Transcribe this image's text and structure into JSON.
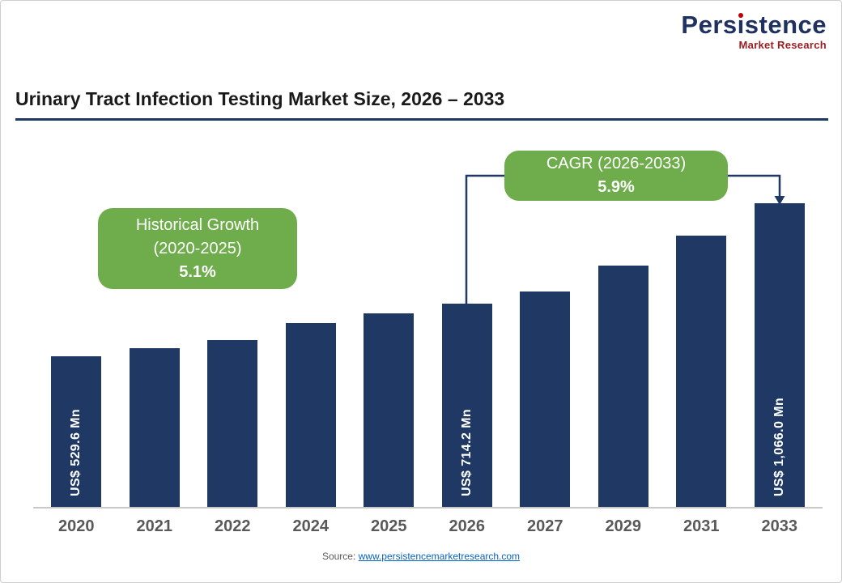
{
  "logo": {
    "name": "Persistence",
    "parts": {
      "pre": "Pers",
      "i": "ı",
      "post": "stence"
    },
    "tagline": "Market Research",
    "navy": "#1F3160",
    "dot_red": "#C00000",
    "tagline_red": "#9C1C1F"
  },
  "title": "Urinary Tract Infection Testing Market Size, 2026 – 2033",
  "callouts": {
    "historical": {
      "line1": "Historical Growth",
      "line2": "(2020-2025)",
      "value": "5.1%"
    },
    "cagr": {
      "line1": "CAGR (2026-2033)",
      "value": "5.9%"
    }
  },
  "source": {
    "prefix": "Source: ",
    "link": "www.persistencemarketresearch.com"
  },
  "chart_data": {
    "type": "bar",
    "title": "Urinary Tract Infection Testing Market Size, 2026 – 2033",
    "categories": [
      "2020",
      "2021",
      "2022",
      "2024",
      "2025",
      "2026",
      "2027",
      "2029",
      "2031",
      "2033"
    ],
    "values": [
      529.6,
      556.6,
      585.0,
      646.2,
      679.1,
      714.2,
      756.3,
      848.1,
      951.1,
      1066.0
    ],
    "bar_labels": {
      "2020": "US$ 529.6 Mn",
      "2026": "US$ 714.2 Mn",
      "2033": "US$ 1,066.0 Mn"
    },
    "unit": "US$ Mn",
    "ylim": [
      0,
      1100
    ],
    "bar_color": "#1F3864",
    "grid": false,
    "legend": "none",
    "annotations": [
      {
        "text": "Historical Growth (2020-2025) 5.1%",
        "applies_to": "2020-2025"
      },
      {
        "text": "CAGR (2026-2033) 5.9%",
        "applies_to": "2026-2033"
      }
    ]
  }
}
